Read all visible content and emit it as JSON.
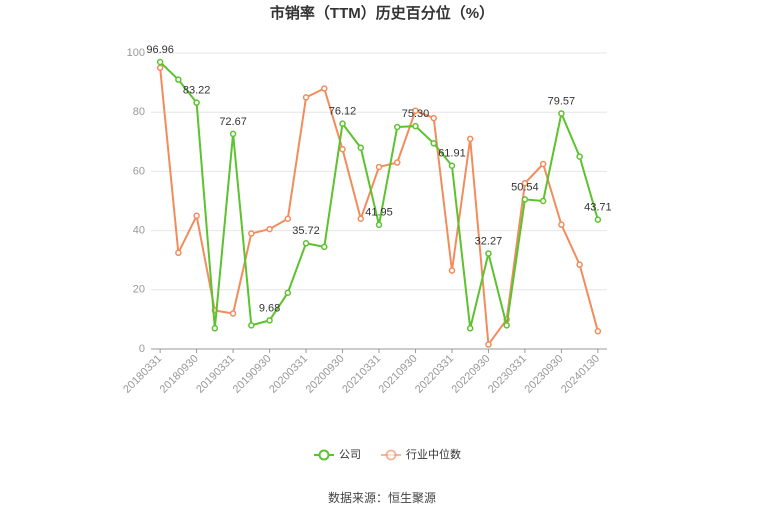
{
  "chart_data": {
    "type": "line",
    "title": "市销率（TTM）历史百分位（%）",
    "categories": [
      "20180331",
      null,
      "20180930",
      null,
      "20190331",
      null,
      "20190930",
      null,
      "20200331",
      null,
      "20200930",
      null,
      "20210331",
      null,
      "20210930",
      null,
      "20220331",
      null,
      "20220930",
      null,
      "20230331",
      null,
      "20230930",
      null,
      "20240130"
    ],
    "series": [
      {
        "name": "公司",
        "color": "#5cc22e",
        "values": [
          96.96,
          91,
          83.22,
          7,
          72.67,
          8,
          9.68,
          19,
          35.72,
          34.5,
          76.12,
          68,
          41.95,
          75,
          75.3,
          69.5,
          61.91,
          7,
          32.27,
          8,
          50.54,
          50,
          79.57,
          65,
          43.71
        ],
        "value_labels": [
          "96.96",
          null,
          "83.22",
          null,
          "72.67",
          null,
          "9.68",
          null,
          "35.72",
          null,
          "76.12",
          null,
          "41.95",
          null,
          "75.30",
          null,
          "61.91",
          null,
          "32.27",
          null,
          "50.54",
          null,
          "79.57",
          null,
          "43.71"
        ]
      },
      {
        "name": "行业中位数",
        "color": "#f28c5c",
        "values": [
          95,
          32.5,
          45,
          13,
          12,
          39,
          40.5,
          44,
          85,
          88,
          67.5,
          44,
          61.5,
          63,
          80.5,
          78,
          26.5,
          71,
          1.5,
          10,
          56,
          62.5,
          42,
          28.5,
          6
        ]
      }
    ],
    "ylim": [
      0,
      100
    ],
    "yticks": [
      0,
      20,
      40,
      60,
      80,
      100
    ],
    "grid": true,
    "legend": "bottom",
    "source": "数据来源：恒生聚源"
  }
}
